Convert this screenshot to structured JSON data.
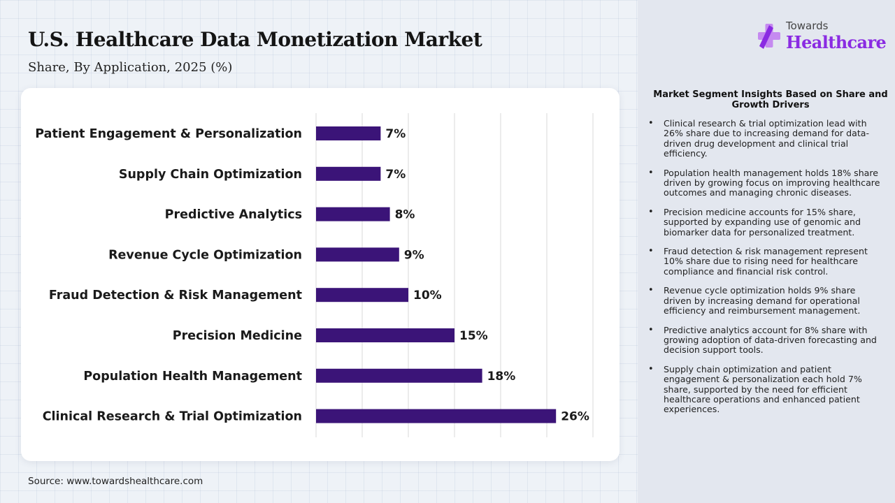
{
  "title": "U.S. Healthcare Data Monetization Market",
  "subtitle": "Share, By Application, 2025 (%)",
  "source": "Source: www.towardshealthcare.com",
  "logo": {
    "top_text": "Towards",
    "bottom_text": "Healthcare"
  },
  "colors": {
    "bar": "#3b1478",
    "brand": "#8a2be2",
    "grid": "#d9d9d9"
  },
  "chart_data": {
    "type": "bar",
    "orientation": "horizontal",
    "categories": [
      "Patient Engagement & Personalization",
      "Supply Chain Optimization",
      "Predictive Analytics",
      "Revenue Cycle Optimization",
      "Fraud Detection & Risk Management",
      "Precision Medicine",
      "Population Health Management",
      "Clinical Research & Trial Optimization"
    ],
    "values": [
      7,
      7,
      8,
      9,
      10,
      15,
      18,
      26
    ],
    "value_labels": [
      "7%",
      "7%",
      "8%",
      "9%",
      "10%",
      "15%",
      "18%",
      "26%"
    ],
    "xlim": [
      0,
      30
    ],
    "grid": true,
    "legend": "none"
  },
  "insights": {
    "heading": "Market Segment Insights Based on Share and Growth Drivers",
    "items": [
      "Clinical research & trial optimization lead with 26% share due to increasing demand for data-driven drug development and clinical trial efficiency.",
      "Population health management holds 18% share driven by growing focus on improving healthcare outcomes and managing chronic diseases.",
      "Precision medicine accounts for 15% share, supported by expanding use of genomic and biomarker data for personalized treatment.",
      "Fraud detection & risk management represent 10% share due to rising need for healthcare compliance and financial risk control.",
      "Revenue cycle optimization holds 9% share driven by increasing demand for operational efficiency and reimbursement management.",
      "Predictive analytics account for 8% share with growing adoption of data-driven forecasting and decision support tools.",
      "Supply chain optimization and patient engagement & personalization each hold 7% share, supported by the need for efficient healthcare operations and enhanced patient experiences."
    ]
  }
}
